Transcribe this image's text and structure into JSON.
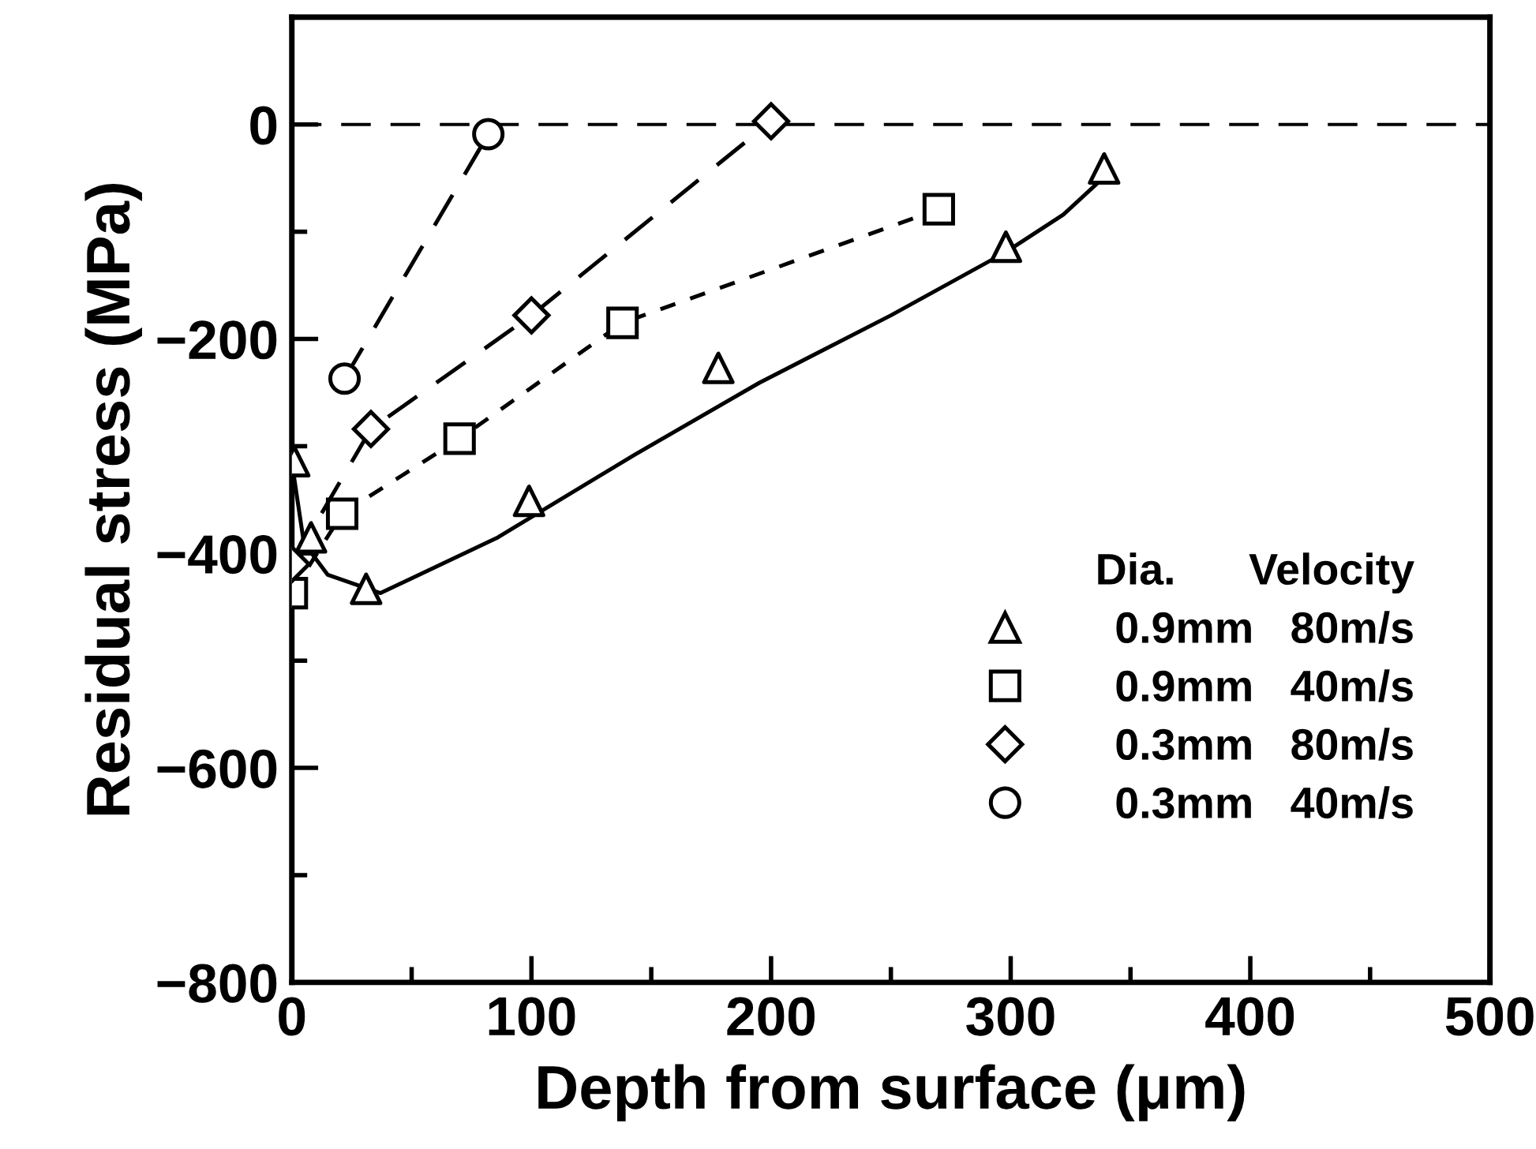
{
  "chart_data": {
    "type": "line",
    "xlabel": "Depth from surface (μm)",
    "ylabel": "Residual stress (MPa)",
    "xlim": [
      0,
      500
    ],
    "ylim": [
      -800,
      100
    ],
    "xticks": [
      0,
      {
        "value": 50,
        "label": null
      },
      100,
      {
        "value": 150,
        "label": null
      },
      200,
      {
        "value": 250,
        "label": null
      },
      300,
      {
        "value": 350,
        "label": null
      },
      400,
      {
        "value": 450,
        "label": null
      },
      500
    ],
    "yticks": [
      {
        "value": -800,
        "label": "−800"
      },
      {
        "value": -700,
        "label": null
      },
      {
        "value": -600,
        "label": "−600"
      },
      {
        "value": -500,
        "label": null
      },
      {
        "value": -400,
        "label": "−400"
      },
      {
        "value": -300,
        "label": null
      },
      {
        "value": -200,
        "label": "−200"
      },
      {
        "value": -100,
        "label": null
      },
      0
    ],
    "grid": false,
    "legend": "bottom right",
    "legend_title": "Dia.      Velocity",
    "ref_lines": [
      {
        "axis": "y",
        "value": 0,
        "color": "#000000",
        "line_style": "dashed"
      }
    ],
    "series": [
      {
        "name": "0.9mm   80m/s",
        "type": "scatter",
        "marker": "triangle",
        "color": "#000000",
        "x": [
          1,
          8,
          31,
          99,
          178,
          298,
          339
        ],
        "values": [
          -314,
          -385,
          -433,
          -351,
          -227,
          -114,
          -41
        ]
      },
      {
        "name": "0.9mm   40m/s",
        "marker": "square",
        "line_style": "dotted",
        "color": "#000000",
        "x": [
          0,
          21,
          70,
          138,
          270
        ],
        "values": [
          -437,
          -363,
          -293,
          -185,
          -79
        ]
      },
      {
        "name": "0.3mm   80m/s",
        "marker": "diamond",
        "line_style": "dashed",
        "color": "#000000",
        "x": [
          0,
          33,
          100,
          200
        ],
        "values": [
          -410,
          -284,
          -178,
          3
        ]
      },
      {
        "name": "0.3mm   40m/s",
        "marker": "circle",
        "line_style": "dashed",
        "color": "#000000",
        "x": [
          22,
          82
        ],
        "values": [
          -237,
          -9
        ]
      },
      {
        "marker": "none",
        "line_style": "solid",
        "color": "#000000",
        "x": [
          1,
          5,
          15,
          37,
          86,
          143,
          195,
          250,
          298,
          322,
          339
        ],
        "values": [
          -330,
          -390,
          -420,
          -437,
          -385,
          -308,
          -241,
          -178,
          -119,
          -84,
          -49
        ]
      }
    ]
  }
}
